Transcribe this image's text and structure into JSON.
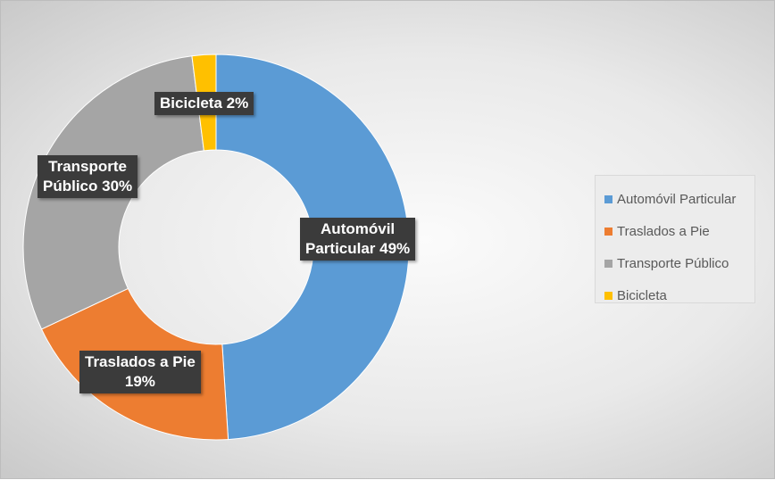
{
  "chart_data": {
    "type": "pie",
    "donut": true,
    "title": "",
    "categories": [
      "Automóvil Particular",
      "Traslados a Pie",
      "Transporte Público",
      "Bicicleta"
    ],
    "values": [
      49,
      19,
      30,
      2
    ],
    "unit": "%",
    "colors": [
      "#5b9bd5",
      "#ed7d31",
      "#a5a5a5",
      "#ffc000"
    ],
    "data_labels": [
      [
        "Automóvil",
        "Particular 49%"
      ],
      [
        "Traslados a Pie",
        "19%"
      ],
      [
        "Transporte",
        "Público 30%"
      ],
      [
        "Bicicleta 2%"
      ]
    ],
    "legend_position": "right"
  }
}
